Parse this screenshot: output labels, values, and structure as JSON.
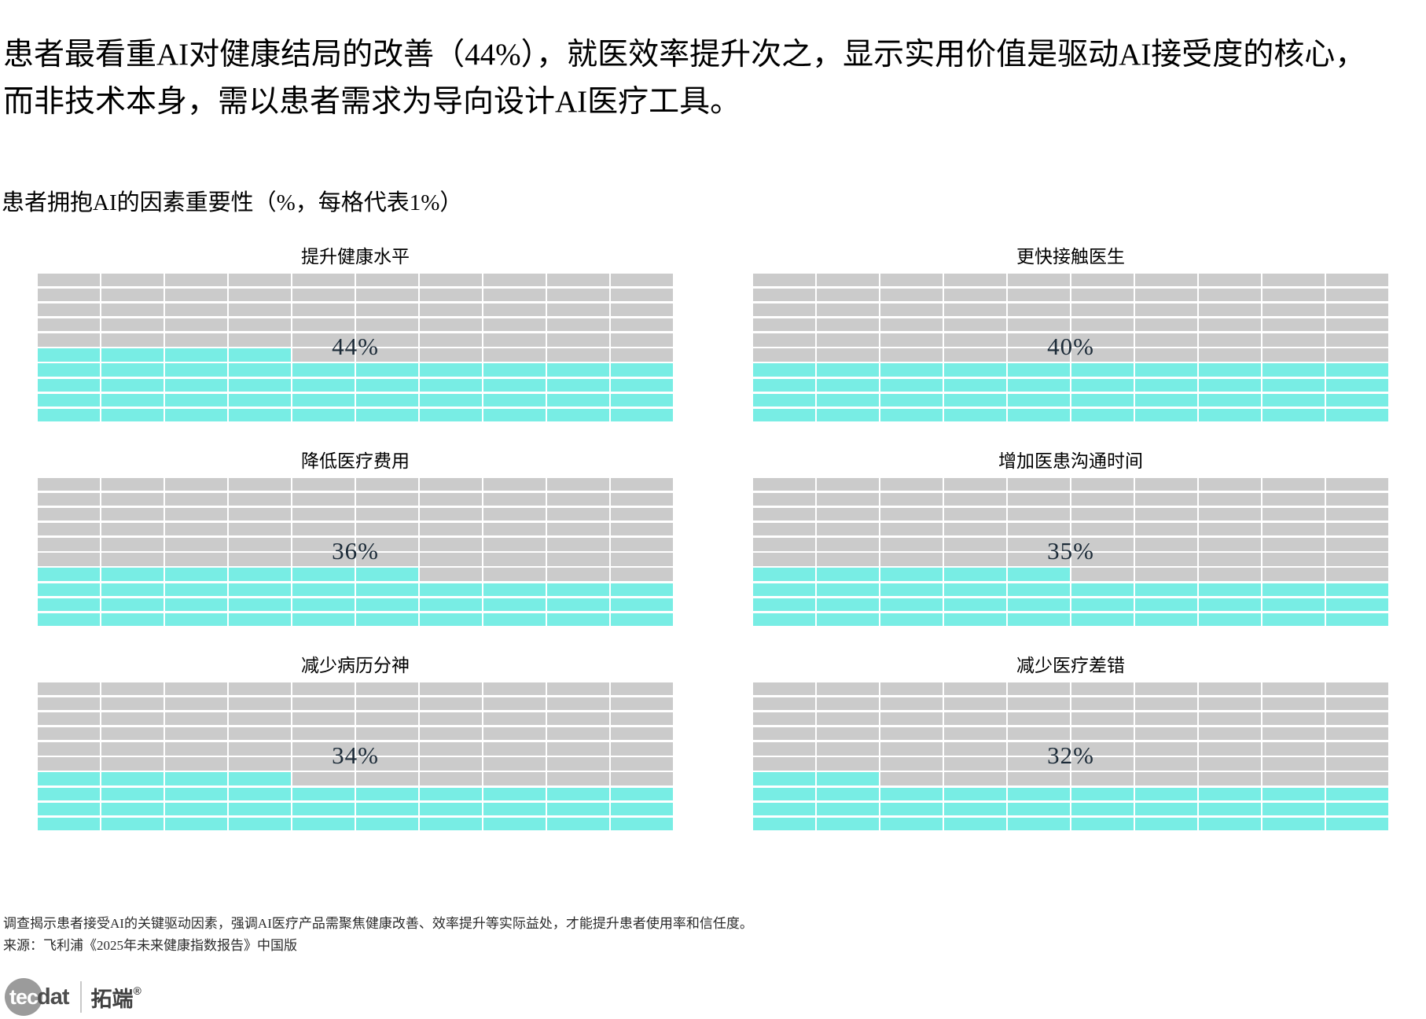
{
  "header": {
    "line1": "患者最看重AI对健康结局的改善（44%），就医效率提升次之，显示实用价值是驱动AI接受度的核心，",
    "line2": "而非技术本身，需以患者需求为导向设计AI医疗工具。"
  },
  "subtitle": "患者拥抱AI的因素重要性（%，每格代表1%）",
  "chart_data": {
    "type": "waffle",
    "grid_rows": 10,
    "grid_cols": 10,
    "percent_per_cell": 1,
    "fill_color": "#78EDE4",
    "empty_color": "#CBCBCB",
    "label_color": "#1C2B38",
    "fill_direction": "bottom-up, partial row fills left-to-right",
    "charts": [
      {
        "title": "提升健康水平",
        "value_pct": 44,
        "label": "44%"
      },
      {
        "title": "更快接触医生",
        "value_pct": 40,
        "label": "40%"
      },
      {
        "title": "降低医疗费用",
        "value_pct": 36,
        "label": "36%"
      },
      {
        "title": "增加医患沟通时间",
        "value_pct": 35,
        "label": "35%"
      },
      {
        "title": "减少病历分神",
        "value_pct": 34,
        "label": "34%"
      },
      {
        "title": "减少医疗差错",
        "value_pct": 32,
        "label": "32%"
      }
    ]
  },
  "footer": {
    "note": "调查揭示患者接受AI的关键驱动因素，强调AI医疗产品需聚焦健康改善、效率提升等实际益处，才能提升患者使用率和信任度。",
    "source": "来源：飞利浦《2025年未来健康指数报告》中国版"
  },
  "logo": {
    "brand_white": "tec",
    "brand_dark": "dat",
    "cn": "拓端",
    "reg": "®"
  }
}
